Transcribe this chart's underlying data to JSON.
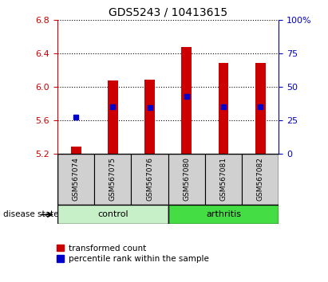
{
  "title": "GDS5243 / 10413615",
  "samples": [
    "GSM567074",
    "GSM567075",
    "GSM567076",
    "GSM567080",
    "GSM567081",
    "GSM567082"
  ],
  "groups": [
    "control",
    "control",
    "control",
    "arthritis",
    "arthritis",
    "arthritis"
  ],
  "bar_bottoms": [
    5.2,
    5.2,
    5.2,
    5.2,
    5.2,
    5.2
  ],
  "bar_tops": [
    5.285,
    6.07,
    6.08,
    6.47,
    6.28,
    6.28
  ],
  "percentile_values": [
    5.64,
    5.76,
    5.75,
    5.88,
    5.76,
    5.76
  ],
  "ylim": [
    5.2,
    6.8
  ],
  "yticks_left": [
    5.2,
    5.6,
    6.0,
    6.4,
    6.8
  ],
  "yticks_right": [
    0,
    25,
    50,
    75,
    100
  ],
  "bar_color": "#cc0000",
  "percentile_color": "#0000cc",
  "control_color": "#c8f0c8",
  "arthritis_color": "#44dd44",
  "control_label": "control",
  "arthritis_label": "arthritis",
  "disease_state_label": "disease state",
  "legend_red_label": "transformed count",
  "legend_blue_label": "percentile rank within the sample",
  "sample_box_bg": "#d0d0d0",
  "plot_bg": "#ffffff",
  "fig_bg": "#ffffff"
}
